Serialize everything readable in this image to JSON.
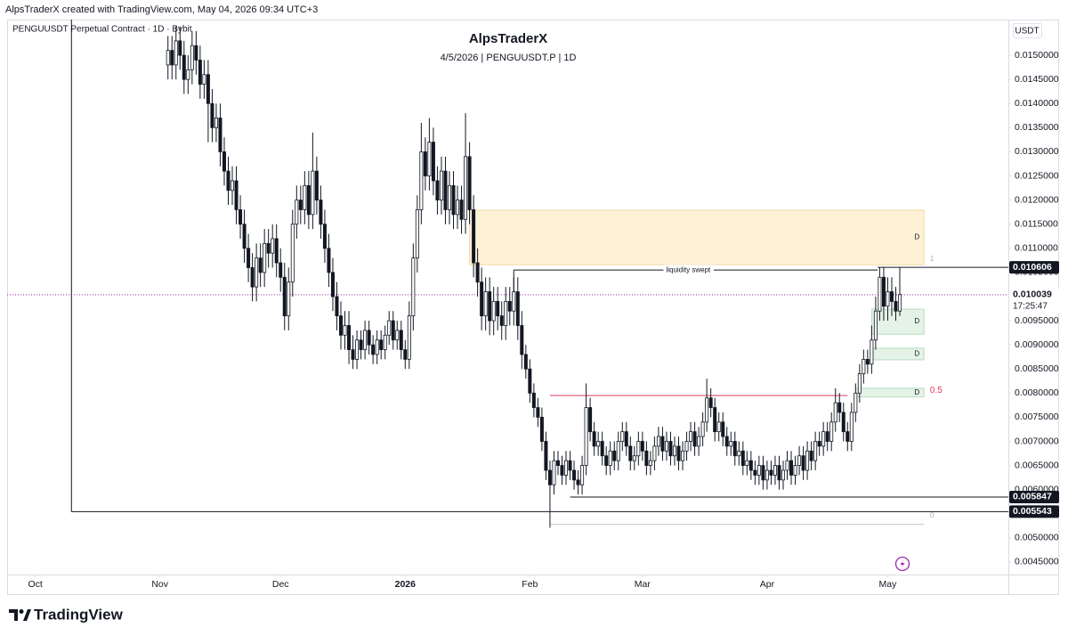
{
  "chart_data": {
    "type": "candlestick",
    "header": "AlpsTraderX created with TradingView.com, May 04, 2026 09:34 UTC+3",
    "symbol": "PENGUUSDT Perpetual Contract · 1D · Bybit",
    "title": "AlpsTraderX",
    "subtitle": "4/5/2026 | PENGUUSDT.P | 1D",
    "currency": "USDT",
    "brand": "TradingView",
    "up_color": "#ffffff",
    "down_color": "#131722",
    "x": [
      33,
      34,
      35,
      36,
      37,
      38,
      39,
      40,
      41,
      42,
      43,
      44,
      45,
      46,
      47,
      48,
      49,
      50,
      51,
      52,
      53,
      54,
      55,
      56,
      57,
      58,
      59,
      60,
      61,
      62,
      63,
      64,
      65,
      66,
      67,
      68,
      69,
      70,
      71,
      72,
      73,
      74,
      75,
      76,
      77,
      78,
      79,
      80,
      81,
      82,
      83,
      84,
      85,
      86,
      87,
      88,
      89,
      90,
      91,
      92,
      93,
      94,
      95,
      96,
      97,
      98,
      99,
      100,
      101,
      102,
      103,
      104,
      105,
      106,
      107,
      108,
      109,
      110,
      111,
      112,
      113,
      114,
      115,
      116,
      117,
      118,
      119,
      120,
      121,
      122,
      123,
      124,
      125,
      126,
      127,
      128,
      129,
      130,
      131,
      132,
      133,
      134,
      135,
      136,
      137,
      138,
      139,
      140,
      141,
      142,
      143,
      144,
      145,
      146,
      147,
      148,
      149,
      150,
      151,
      152,
      153,
      154,
      155,
      156,
      157,
      158,
      159,
      160,
      161,
      162,
      163,
      164,
      165,
      166,
      167,
      168,
      169,
      170,
      171,
      172,
      173,
      174,
      175,
      176,
      177,
      178,
      179,
      180,
      181,
      182,
      183,
      184,
      185,
      186,
      187,
      188,
      189,
      190,
      191,
      192,
      193,
      194,
      195,
      196,
      197,
      198,
      199,
      200,
      201,
      202,
      203,
      204,
      205,
      206,
      207,
      208,
      209,
      210,
      211,
      212,
      213,
      214,
      215
    ],
    "open": [
      0.0148,
      0.0151,
      0.0148,
      0.0153,
      0.015,
      0.0145,
      0.0147,
      0.0152,
      0.0149,
      0.0144,
      0.0146,
      0.014,
      0.0135,
      0.0137,
      0.013,
      0.0126,
      0.0122,
      0.0124,
      0.0118,
      0.0115,
      0.011,
      0.0106,
      0.0102,
      0.0108,
      0.0105,
      0.0111,
      0.0109,
      0.0112,
      0.0107,
      0.0104,
      0.0096,
      0.0103,
      0.0115,
      0.012,
      0.0118,
      0.0123,
      0.0117,
      0.0126,
      0.012,
      0.0115,
      0.011,
      0.0105,
      0.01,
      0.0096,
      0.0092,
      0.0094,
      0.0089,
      0.0087,
      0.0091,
      0.0089,
      0.0093,
      0.009,
      0.0088,
      0.0091,
      0.0089,
      0.0092,
      0.0095,
      0.0091,
      0.0093,
      0.0089,
      0.0087,
      0.0096,
      0.0108,
      0.0118,
      0.013,
      0.0125,
      0.0132,
      0.0124,
      0.012,
      0.0126,
      0.0118,
      0.0123,
      0.0117,
      0.012,
      0.0116,
      0.0129,
      0.0118,
      0.0107,
      0.0103,
      0.0096,
      0.0101,
      0.0095,
      0.0099,
      0.0096,
      0.0094,
      0.0099,
      0.0097,
      0.0101,
      0.0094,
      0.0088,
      0.0085,
      0.008,
      0.0077,
      0.0075,
      0.007,
      0.0064,
      0.0061,
      0.0066,
      0.0065,
      0.0063,
      0.0066,
      0.0064,
      0.0062,
      0.0061,
      0.0065,
      0.0077,
      0.0072,
      0.0069,
      0.007,
      0.0067,
      0.0065,
      0.0068,
      0.0066,
      0.007,
      0.0072,
      0.0069,
      0.0066,
      0.0067,
      0.007,
      0.0068,
      0.0065,
      0.0066,
      0.0069,
      0.0071,
      0.0068,
      0.007,
      0.0067,
      0.0069,
      0.0066,
      0.0068,
      0.007,
      0.0072,
      0.0069,
      0.0071,
      0.0074,
      0.0079,
      0.0077,
      0.0072,
      0.0074,
      0.0071,
      0.0069,
      0.007,
      0.0067,
      0.0068,
      0.0065,
      0.0066,
      0.0064,
      0.0063,
      0.0065,
      0.0062,
      0.0064,
      0.0063,
      0.0065,
      0.0062,
      0.0064,
      0.0066,
      0.0063,
      0.0065,
      0.0067,
      0.0064,
      0.0068,
      0.0066,
      0.007,
      0.0069,
      0.0072,
      0.007,
      0.0074,
      0.0078,
      0.0076,
      0.0072,
      0.007,
      0.0076,
      0.008,
      0.0084,
      0.0087,
      0.0086,
      0.0091,
      0.0097,
      0.0104,
      0.0098,
      0.0101,
      0.0099,
      0.0097
    ],
    "high": [
      0.0154,
      0.0154,
      0.0156,
      0.0156,
      0.0153,
      0.015,
      0.0155,
      0.0155,
      0.0152,
      0.0149,
      0.0149,
      0.0143,
      0.014,
      0.014,
      0.0133,
      0.0129,
      0.0127,
      0.0127,
      0.0121,
      0.0118,
      0.0113,
      0.0109,
      0.0111,
      0.0111,
      0.0114,
      0.0114,
      0.0115,
      0.0115,
      0.011,
      0.0107,
      0.0106,
      0.0118,
      0.0123,
      0.0123,
      0.0126,
      0.0126,
      0.0134,
      0.0129,
      0.0123,
      0.0118,
      0.0113,
      0.0108,
      0.0103,
      0.0099,
      0.0097,
      0.0097,
      0.0092,
      0.0093,
      0.0093,
      0.0095,
      0.0095,
      0.0092,
      0.0093,
      0.0093,
      0.0094,
      0.0097,
      0.0097,
      0.0095,
      0.0095,
      0.0091,
      0.0099,
      0.0111,
      0.0121,
      0.0136,
      0.0133,
      0.0137,
      0.0135,
      0.0127,
      0.0129,
      0.0129,
      0.0126,
      0.0126,
      0.0123,
      0.0123,
      0.0138,
      0.0132,
      0.0121,
      0.011,
      0.0106,
      0.0104,
      0.0104,
      0.0102,
      0.0102,
      0.0099,
      0.0102,
      0.0102,
      0.0104,
      0.0104,
      0.0097,
      0.009,
      0.0087,
      0.0082,
      0.0079,
      0.0077,
      0.0072,
      0.0066,
      0.0068,
      0.0068,
      0.0067,
      0.0068,
      0.0068,
      0.0066,
      0.0064,
      0.0067,
      0.0082,
      0.0079,
      0.0074,
      0.0072,
      0.0072,
      0.0069,
      0.007,
      0.007,
      0.0072,
      0.0074,
      0.0074,
      0.0071,
      0.0069,
      0.0072,
      0.0072,
      0.007,
      0.0068,
      0.0071,
      0.0073,
      0.0073,
      0.0072,
      0.0072,
      0.0071,
      0.0071,
      0.007,
      0.0072,
      0.0074,
      0.0074,
      0.0073,
      0.0076,
      0.0083,
      0.0081,
      0.0079,
      0.0076,
      0.0076,
      0.0073,
      0.0072,
      0.0072,
      0.007,
      0.007,
      0.0068,
      0.0068,
      0.0066,
      0.0067,
      0.0067,
      0.0066,
      0.0066,
      0.0067,
      0.0067,
      0.0066,
      0.0068,
      0.0068,
      0.0067,
      0.0069,
      0.0069,
      0.007,
      0.007,
      0.0072,
      0.0072,
      0.0074,
      0.0074,
      0.0076,
      0.0081,
      0.008,
      0.0078,
      0.0074,
      0.0078,
      0.0082,
      0.0086,
      0.0089,
      0.0089,
      0.0094,
      0.01,
      0.0106,
      0.0106,
      0.0104,
      0.0104,
      0.0102,
      0.0106
    ],
    "low": [
      0.0145,
      0.0145,
      0.0145,
      0.0147,
      0.0142,
      0.0142,
      0.0144,
      0.0146,
      0.0141,
      0.0141,
      0.0132,
      0.0132,
      0.0132,
      0.0127,
      0.0123,
      0.0119,
      0.0119,
      0.0115,
      0.0112,
      0.0107,
      0.0103,
      0.0099,
      0.0099,
      0.0102,
      0.0102,
      0.0106,
      0.0106,
      0.0104,
      0.0101,
      0.0093,
      0.0093,
      0.01,
      0.0112,
      0.0115,
      0.0115,
      0.0114,
      0.0114,
      0.0117,
      0.0112,
      0.0107,
      0.0102,
      0.0097,
      0.0093,
      0.0089,
      0.0089,
      0.0086,
      0.0085,
      0.0085,
      0.0087,
      0.0087,
      0.0088,
      0.0086,
      0.0086,
      0.0087,
      0.0087,
      0.009,
      0.0089,
      0.0089,
      0.0087,
      0.0085,
      0.0085,
      0.0093,
      0.0105,
      0.0115,
      0.0122,
      0.0122,
      0.0121,
      0.0117,
      0.0117,
      0.0115,
      0.0115,
      0.0114,
      0.0114,
      0.0113,
      0.0113,
      0.0115,
      0.0104,
      0.01,
      0.0093,
      0.0093,
      0.0092,
      0.0092,
      0.0093,
      0.0091,
      0.0091,
      0.0094,
      0.0094,
      0.0091,
      0.0085,
      0.0083,
      0.0078,
      0.0075,
      0.0073,
      0.0068,
      0.0062,
      0.00521,
      0.0059,
      0.0063,
      0.0061,
      0.0061,
      0.0062,
      0.006,
      0.0059,
      0.0059,
      0.0063,
      0.007,
      0.0067,
      0.0067,
      0.0065,
      0.0063,
      0.0063,
      0.0064,
      0.0064,
      0.0068,
      0.0067,
      0.0064,
      0.0064,
      0.0065,
      0.0066,
      0.0063,
      0.0063,
      0.0064,
      0.0067,
      0.0066,
      0.0066,
      0.0065,
      0.0065,
      0.0064,
      0.0064,
      0.0066,
      0.0068,
      0.0067,
      0.0067,
      0.0069,
      0.0072,
      0.0075,
      0.007,
      0.007,
      0.0069,
      0.0067,
      0.0067,
      0.0065,
      0.0065,
      0.0063,
      0.0063,
      0.0062,
      0.0061,
      0.0061,
      0.006,
      0.006,
      0.0061,
      0.0061,
      0.006,
      0.006,
      0.0062,
      0.0061,
      0.0061,
      0.0063,
      0.0062,
      0.0062,
      0.0064,
      0.0064,
      0.0067,
      0.0067,
      0.0068,
      0.0068,
      0.0072,
      0.0074,
      0.007,
      0.0068,
      0.0068,
      0.0074,
      0.0078,
      0.0082,
      0.0084,
      0.0084,
      0.0089,
      0.0095,
      0.0095,
      0.0095,
      0.0096,
      0.0095,
      0.0096
    ],
    "close": [
      0.0151,
      0.0148,
      0.0153,
      0.015,
      0.0145,
      0.0147,
      0.0152,
      0.0149,
      0.0144,
      0.0146,
      0.014,
      0.0135,
      0.0137,
      0.013,
      0.0126,
      0.0122,
      0.0124,
      0.0118,
      0.0115,
      0.011,
      0.0106,
      0.0102,
      0.0108,
      0.0105,
      0.0111,
      0.0109,
      0.0112,
      0.0107,
      0.0104,
      0.0096,
      0.0103,
      0.0115,
      0.012,
      0.0118,
      0.0123,
      0.0117,
      0.0126,
      0.012,
      0.0115,
      0.011,
      0.0105,
      0.01,
      0.0096,
      0.0092,
      0.0094,
      0.0089,
      0.0087,
      0.0091,
      0.0089,
      0.0093,
      0.009,
      0.0088,
      0.0091,
      0.0089,
      0.0092,
      0.0095,
      0.0091,
      0.0093,
      0.0089,
      0.0087,
      0.0096,
      0.0108,
      0.0118,
      0.013,
      0.0125,
      0.0132,
      0.0124,
      0.012,
      0.0126,
      0.0118,
      0.0123,
      0.0117,
      0.012,
      0.0116,
      0.0129,
      0.0118,
      0.0107,
      0.0103,
      0.0096,
      0.0101,
      0.0095,
      0.0099,
      0.0096,
      0.0094,
      0.0099,
      0.0097,
      0.0101,
      0.0094,
      0.0088,
      0.0085,
      0.008,
      0.0077,
      0.0075,
      0.007,
      0.0064,
      0.0061,
      0.0066,
      0.0065,
      0.0063,
      0.0066,
      0.0064,
      0.0062,
      0.0061,
      0.0065,
      0.0077,
      0.0072,
      0.0069,
      0.007,
      0.0067,
      0.0065,
      0.0068,
      0.0066,
      0.007,
      0.0072,
      0.0069,
      0.0066,
      0.0067,
      0.007,
      0.0068,
      0.0065,
      0.0066,
      0.0069,
      0.0071,
      0.0068,
      0.007,
      0.0067,
      0.0069,
      0.0066,
      0.0068,
      0.007,
      0.0072,
      0.0069,
      0.0071,
      0.0074,
      0.0079,
      0.0077,
      0.0072,
      0.0074,
      0.0071,
      0.0069,
      0.007,
      0.0067,
      0.0068,
      0.0065,
      0.0066,
      0.0064,
      0.0063,
      0.0065,
      0.0062,
      0.0064,
      0.0063,
      0.0065,
      0.0062,
      0.0064,
      0.0066,
      0.0063,
      0.0065,
      0.0067,
      0.0064,
      0.0068,
      0.0066,
      0.007,
      0.0069,
      0.0072,
      0.007,
      0.0074,
      0.0078,
      0.0076,
      0.0072,
      0.007,
      0.0076,
      0.008,
      0.0084,
      0.0087,
      0.0086,
      0.0091,
      0.0097,
      0.0104,
      0.0098,
      0.0101,
      0.0099,
      0.0097,
      0.01004
    ],
    "xlim": [
      -7,
      242
    ],
    "xticks": [
      {
        "value": 0,
        "label": "Oct"
      },
      {
        "value": 31,
        "label": "Nov"
      },
      {
        "value": 61,
        "label": "Dec"
      },
      {
        "value": 92,
        "label": "2026"
      },
      {
        "value": 123,
        "label": "Feb"
      },
      {
        "value": 151,
        "label": "Mar"
      },
      {
        "value": 182,
        "label": "Apr"
      },
      {
        "value": 212,
        "label": "May"
      }
    ],
    "ylim": [
      0.00424,
      0.01574
    ],
    "yticks": [
      {
        "value": 0.0045,
        "label": "0.0045000"
      },
      {
        "value": 0.005,
        "label": "0.0050000"
      },
      {
        "value": 0.0055,
        "label": "0.0055000"
      },
      {
        "value": 0.006,
        "label": "0.0060000"
      },
      {
        "value": 0.0065,
        "label": "0.0065000"
      },
      {
        "value": 0.007,
        "label": "0.0070000"
      },
      {
        "value": 0.0075,
        "label": "0.0075000"
      },
      {
        "value": 0.008,
        "label": "0.0080000"
      },
      {
        "value": 0.0085,
        "label": "0.0085000"
      },
      {
        "value": 0.009,
        "label": "0.0090000"
      },
      {
        "value": 0.0095,
        "label": "0.0095000"
      },
      {
        "value": 0.01,
        "label": "0.0100000"
      },
      {
        "value": 0.0105,
        "label": "0.0105000"
      },
      {
        "value": 0.011,
        "label": "0.0110000"
      },
      {
        "value": 0.0115,
        "label": "0.0115000"
      },
      {
        "value": 0.012,
        "label": "0.0120000"
      },
      {
        "value": 0.0125,
        "label": "0.0125000"
      },
      {
        "value": 0.013,
        "label": "0.0130000"
      },
      {
        "value": 0.0135,
        "label": "0.0135000"
      },
      {
        "value": 0.014,
        "label": "0.0140000"
      },
      {
        "value": 0.0145,
        "label": "0.0145000"
      },
      {
        "value": 0.015,
        "label": "0.0150000"
      }
    ],
    "zones": [
      {
        "x": [
          108,
          221
        ],
        "y": [
          0.01066,
          0.01179
        ],
        "label": "D",
        "color": "#fdf1d6",
        "border": "#f3d9a4"
      },
      {
        "x": [
          208,
          221
        ],
        "y": [
          0.00922,
          0.00974
        ],
        "label": "D",
        "color": "#e4f3e6",
        "border": "#b7dcbf"
      },
      {
        "x": [
          208,
          221
        ],
        "y": [
          0.00869,
          0.00893
        ],
        "label": "D",
        "color": "#e4f3e6",
        "border": "#b7dcbf"
      },
      {
        "x": [
          204,
          221
        ],
        "y": [
          0.00792,
          0.0081
        ],
        "label": "D",
        "color": "#e4f3e6",
        "border": "#b7dcbf"
      }
    ],
    "lines": [
      {
        "x": [
          9,
          9
        ],
        "y": [
          0.01574,
          0.005543
        ],
        "color": "#131722"
      },
      {
        "x": [
          9,
          242
        ],
        "y": [
          0.005543,
          0.005543
        ],
        "color": "#131722"
      },
      {
        "x": [
          133,
          242
        ],
        "y": [
          0.005847,
          0.005847
        ],
        "color": "#131722"
      },
      {
        "x": [
          209.5,
          242
        ],
        "y": [
          0.010606,
          0.010606
        ],
        "color": "#131722"
      },
      {
        "x": [
          119,
          209.5
        ],
        "y": [
          0.01055,
          0.01055
        ],
        "color": "#131722"
      },
      {
        "x": [
          119,
          119
        ],
        "y": [
          0.01055,
          0.00996
        ],
        "color": "#131722"
      },
      {
        "x": [
          128,
          202
        ],
        "y": [
          0.00795,
          0.00795
        ],
        "color": "#e0395e"
      },
      {
        "x": [
          128,
          221
        ],
        "y": [
          0.00528,
          0.00528
        ],
        "color": "#c8c8c8"
      }
    ],
    "annotations": [
      {
        "text": "liquidity swept",
        "x": 162.4,
        "y": 0.01055,
        "color": "#131722"
      },
      {
        "text": "0.5",
        "x": 222.5,
        "y": 0.00805,
        "color": "#e0395e"
      },
      {
        "text": "1",
        "x": 222.5,
        "y": 0.01078,
        "color": "#b0b0b0"
      },
      {
        "text": "0",
        "x": 222.5,
        "y": 0.00546,
        "color": "#b0b0b0"
      }
    ],
    "price_labels": [
      {
        "value": 0.010606,
        "bg": "#131722",
        "color": "#ffffff"
      },
      {
        "value": 0.010039,
        "bg": "#ffffff",
        "color": "#131722",
        "line": "#9c27b0"
      },
      {
        "value": 0.005847,
        "bg": "#131722",
        "color": "#ffffff"
      },
      {
        "value": 0.005543,
        "bg": "#131722",
        "color": "#ffffff"
      }
    ],
    "countdown": "17:25:47"
  }
}
